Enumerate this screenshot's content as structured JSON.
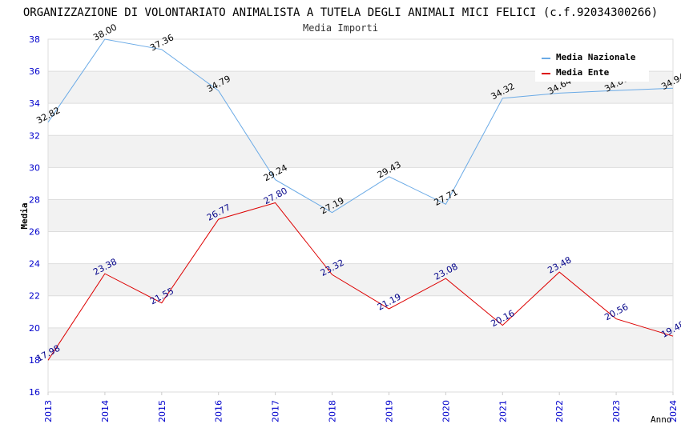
{
  "chart_data": {
    "type": "line",
    "title": "ORGANIZZAZIONE DI VOLONTARIATO ANIMALISTA A TUTELA DEGLI ANIMALI MICI FELICI (c.f.92034300266)",
    "subtitle": "Media Importi",
    "xlabel": "Anno",
    "ylabel": "Media",
    "ylim": [
      16,
      38
    ],
    "yticks": [
      "16",
      "18",
      "20",
      "22",
      "24",
      "26",
      "28",
      "30",
      "32",
      "34",
      "36",
      "38"
    ],
    "categories": [
      "2013",
      "2014",
      "2015",
      "2016",
      "2017",
      "2018",
      "2019",
      "2020",
      "2021",
      "2022",
      "2023",
      "2024"
    ],
    "legend_position": "top-right",
    "series": [
      {
        "name": "Media Nazionale",
        "color": "#6aaae6",
        "values": [
          32.82,
          38.0,
          37.36,
          34.79,
          29.24,
          27.19,
          29.43,
          27.71,
          34.32,
          34.64,
          34.8,
          34.94
        ],
        "labels": [
          "32.82",
          "38.00",
          "37.36",
          "34.79",
          "29.24",
          "27.19",
          "29.43",
          "27.71",
          "34.32",
          "34.64",
          "34.80",
          "34.94"
        ]
      },
      {
        "name": "Media Ente",
        "color": "#dd0000",
        "values": [
          17.98,
          23.38,
          21.55,
          26.77,
          27.8,
          23.32,
          21.19,
          23.08,
          20.16,
          23.48,
          20.56,
          19.48
        ],
        "labels": [
          "17.98",
          "23.38",
          "21.55",
          "26.77",
          "27.80",
          "23.32",
          "21.19",
          "23.08",
          "20.16",
          "23.48",
          "20.56",
          "19.48"
        ]
      }
    ]
  }
}
